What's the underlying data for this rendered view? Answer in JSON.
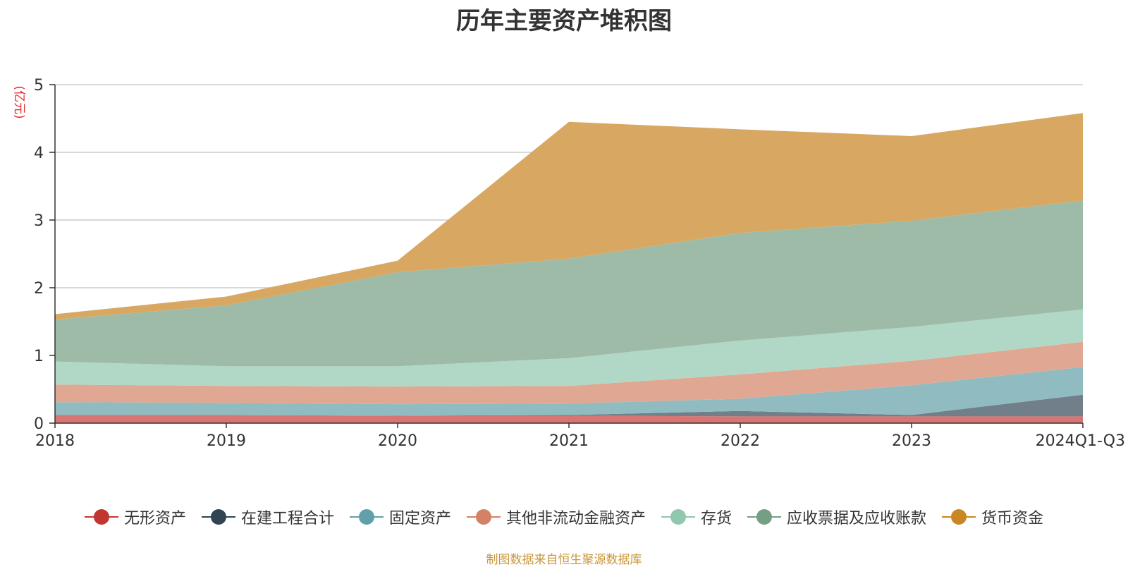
{
  "chart_data": {
    "type": "area",
    "stacked": true,
    "title": "历年主要资产堆积图",
    "ylabel": "(亿元)",
    "ylim": [
      0,
      5
    ],
    "yticks": [
      0,
      1,
      2,
      3,
      4,
      5
    ],
    "categories": [
      "2018",
      "2019",
      "2020",
      "2021",
      "2022",
      "2023",
      "2024Q1-Q3"
    ],
    "grid": true,
    "legend_position": "bottom",
    "series": [
      {
        "name": "无形资产",
        "color": "#c23531",
        "area_color": "#d87471",
        "values": [
          0.12,
          0.12,
          0.11,
          0.11,
          0.1,
          0.1,
          0.1
        ]
      },
      {
        "name": "在建工程合计",
        "color": "#2f4554",
        "area_color": "#717f8a",
        "values": [
          0.0,
          0.0,
          0.0,
          0.01,
          0.08,
          0.02,
          0.32
        ]
      },
      {
        "name": "固定资产",
        "color": "#61a0a8",
        "area_color": "#90bcc1",
        "values": [
          0.19,
          0.18,
          0.17,
          0.17,
          0.18,
          0.44,
          0.41
        ]
      },
      {
        "name": "其他非流动金融资产",
        "color": "#d48265",
        "area_color": "#e0a892",
        "values": [
          0.26,
          0.25,
          0.26,
          0.26,
          0.36,
          0.36,
          0.37
        ]
      },
      {
        "name": "存货",
        "color": "#91c7ae",
        "area_color": "#b1d8c6",
        "values": [
          0.34,
          0.29,
          0.3,
          0.41,
          0.5,
          0.5,
          0.48
        ]
      },
      {
        "name": "应收票据及应收账款",
        "color": "#749f83",
        "area_color": "#9ebba8",
        "values": [
          0.62,
          0.9,
          1.39,
          1.47,
          1.59,
          1.57,
          1.61
        ]
      },
      {
        "name": "货币资金",
        "color": "#ca8622",
        "area_color": "#d8a862",
        "values": [
          0.08,
          0.13,
          0.17,
          2.02,
          1.53,
          1.25,
          1.29
        ]
      }
    ]
  },
  "source_note": "制图数据来自恒生聚源数据库"
}
